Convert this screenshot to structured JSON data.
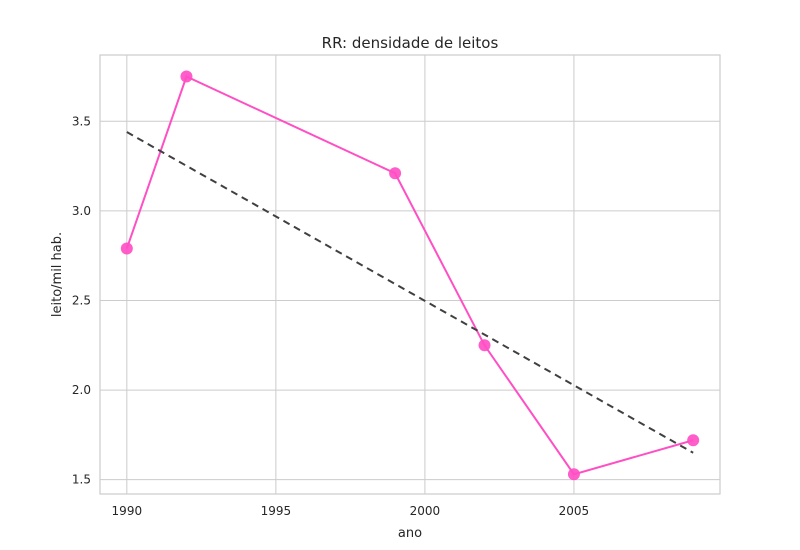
{
  "chart_data": {
    "type": "line",
    "title": "RR: densidade de leitos",
    "xlabel": "ano",
    "ylabel": "leito/mil hab.",
    "xlim": [
      1989.1,
      2009.9
    ],
    "ylim": [
      1.42,
      3.87
    ],
    "xticks": [
      1990,
      1995,
      2000,
      2005
    ],
    "yticks": [
      1.5,
      2.0,
      2.5,
      3.0,
      3.5
    ],
    "grid": true,
    "series": [
      {
        "kind": "data",
        "color": "#ff4fc4",
        "x": [
          1990,
          1992,
          1999,
          2002,
          2005,
          2009
        ],
        "y": [
          2.79,
          3.75,
          3.21,
          2.25,
          1.53,
          1.72
        ]
      },
      {
        "kind": "trend",
        "style": "dashed",
        "color": "#404040",
        "x": [
          1990,
          2009
        ],
        "y": [
          3.44,
          1.65
        ]
      }
    ]
  }
}
